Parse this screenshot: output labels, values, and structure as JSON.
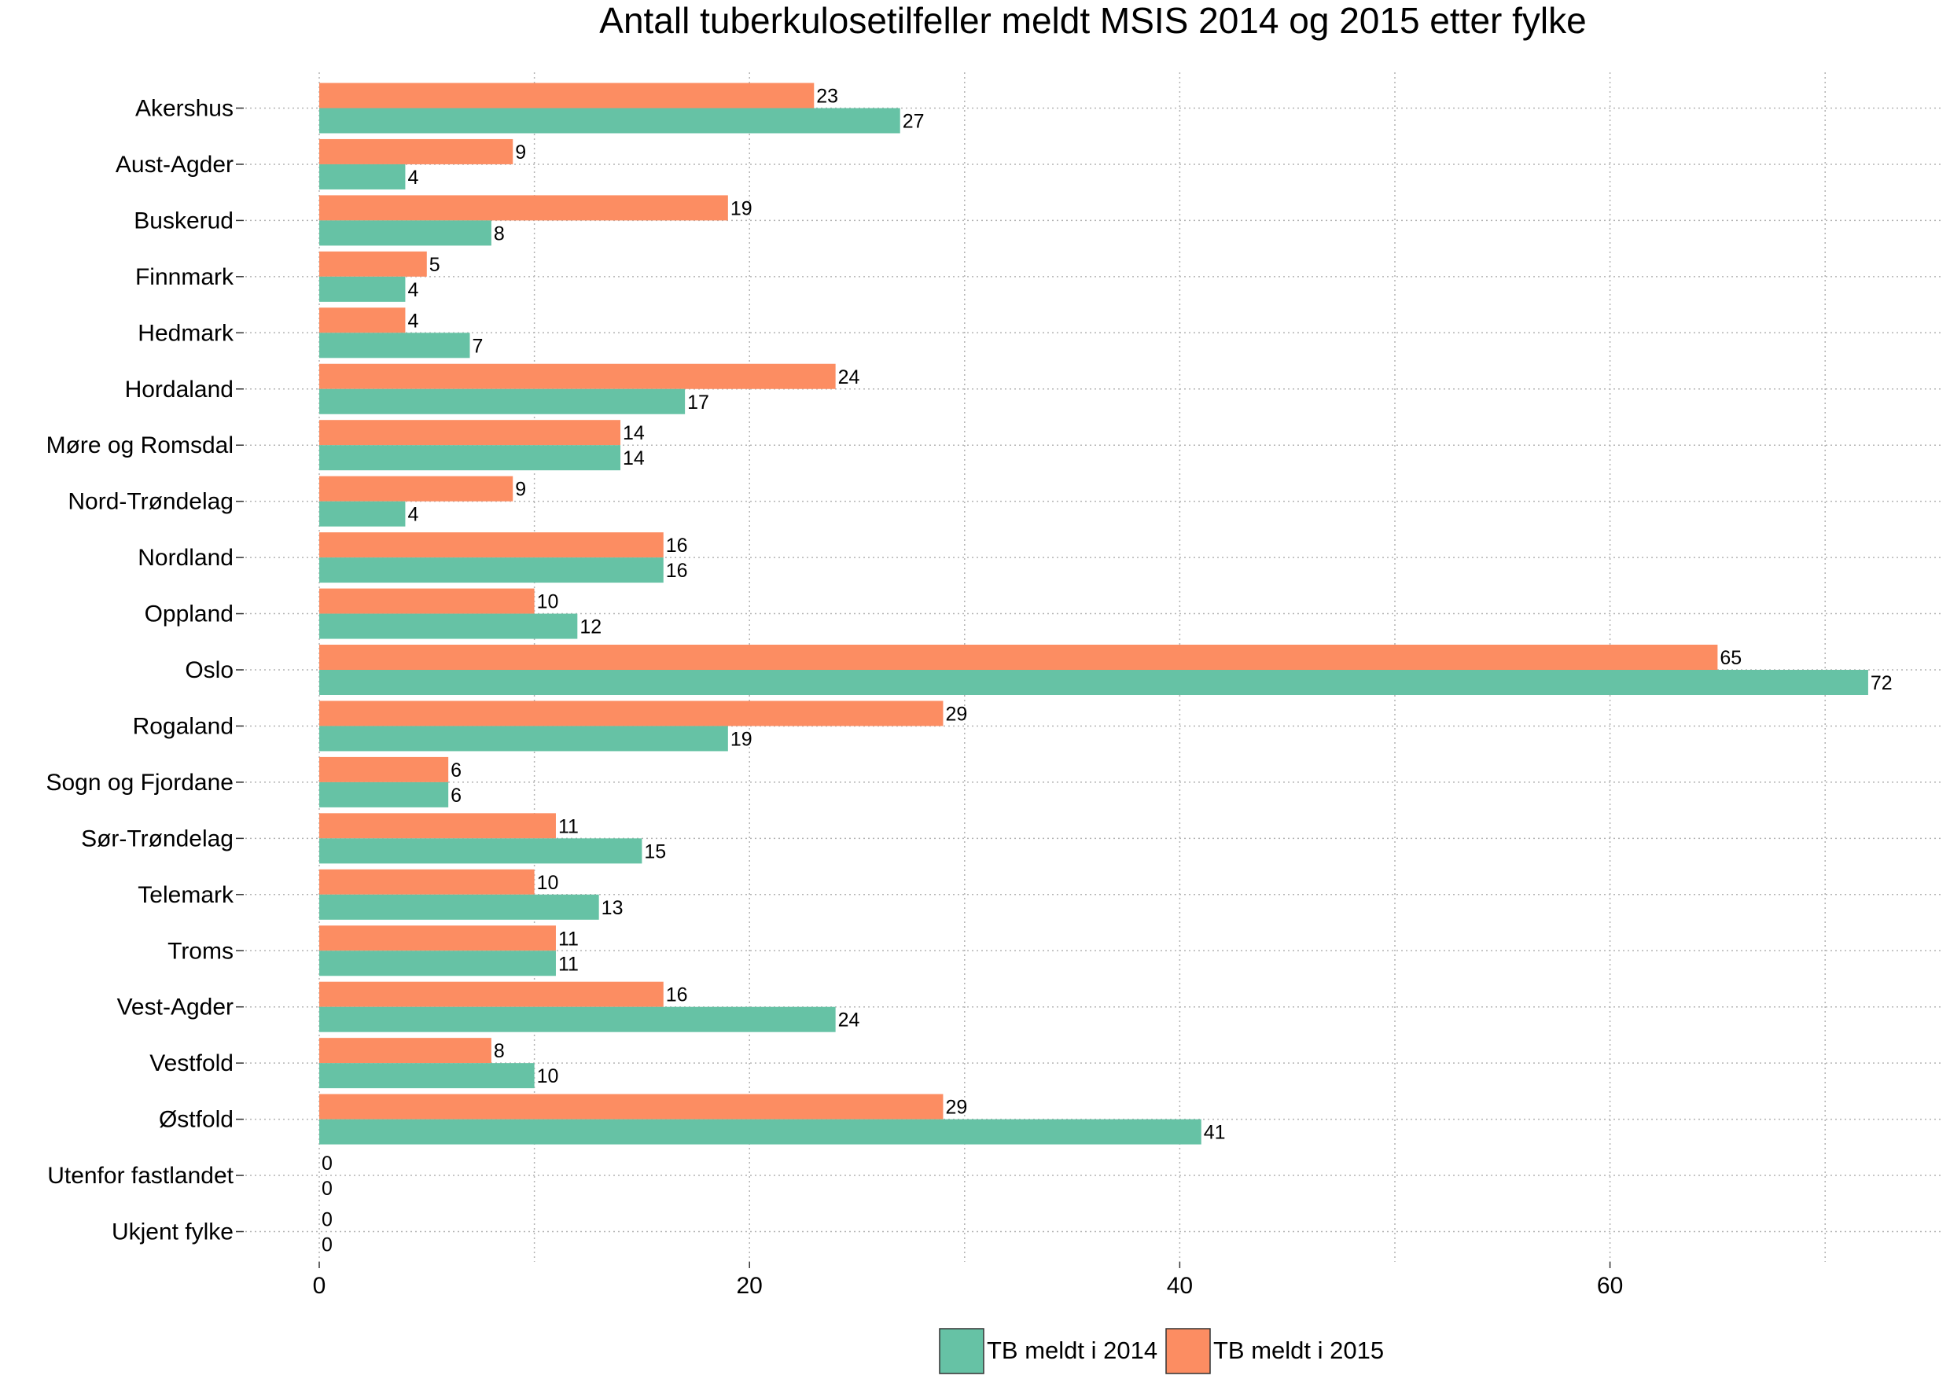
{
  "chart_data": {
    "type": "bar",
    "orientation": "horizontal",
    "title": "Antall tuberkulosetilfeller meldt MSIS 2014 og 2015 etter fylke",
    "xlabel": "",
    "ylabel": "",
    "xlim": [
      0,
      75
    ],
    "x_ticks": [
      0,
      20,
      40,
      60
    ],
    "grid": true,
    "legend_position": "bottom",
    "categories": [
      "Akershus",
      "Aust-Agder",
      "Buskerud",
      "Finnmark",
      "Hedmark",
      "Hordaland",
      "Møre og Romsdal",
      "Nord-Trøndelag",
      "Nordland",
      "Oppland",
      "Oslo",
      "Rogaland",
      "Sogn og Fjordane",
      "Sør-Trøndelag",
      "Telemark",
      "Troms",
      "Vest-Agder",
      "Vestfold",
      "Østfold",
      "Utenfor fastlandet",
      "Ukjent fylke"
    ],
    "series": [
      {
        "name": "TB meldt i 2015",
        "color": "#fc8d62",
        "values": [
          23,
          9,
          19,
          5,
          4,
          24,
          14,
          9,
          16,
          10,
          65,
          29,
          6,
          11,
          10,
          11,
          16,
          8,
          29,
          0,
          0
        ]
      },
      {
        "name": "TB meldt i 2014",
        "color": "#66c2a5",
        "values": [
          27,
          4,
          8,
          4,
          7,
          17,
          14,
          4,
          16,
          12,
          72,
          19,
          6,
          15,
          13,
          11,
          24,
          10,
          41,
          0,
          0
        ]
      }
    ],
    "legend_order": [
      "TB meldt i 2014",
      "TB meldt i 2015"
    ]
  }
}
